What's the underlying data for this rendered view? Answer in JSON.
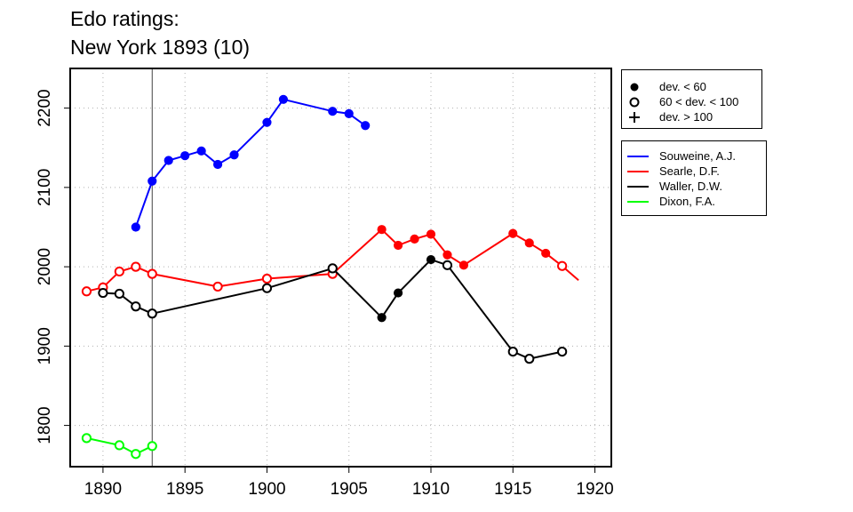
{
  "title_line1": "Edo ratings:",
  "title_line2": "New York 1893 (10)",
  "marker_legend": [
    {
      "label": "dev. < 60",
      "symbol": "filled-circle"
    },
    {
      "label": "60 < dev. < 100",
      "symbol": "open-circle"
    },
    {
      "label": "dev. > 100",
      "symbol": "plus"
    }
  ],
  "chart_data": {
    "type": "line",
    "title": "Edo ratings:\nNew York 1893 (10)",
    "xlabel": "",
    "ylabel": "",
    "xlim": [
      1888,
      1921
    ],
    "ylim": [
      1748,
      2250
    ],
    "xticks": [
      1890,
      1895,
      1900,
      1905,
      1910,
      1915,
      1920
    ],
    "yticks": [
      1800,
      1900,
      2000,
      2100,
      2200
    ],
    "grid": true,
    "vline_x": 1893,
    "legend_position": "right",
    "series": [
      {
        "name": "Souweine, A.J.",
        "color": "#0000ff",
        "points": [
          {
            "x": 1892,
            "y": 2050,
            "dev": "low"
          },
          {
            "x": 1893,
            "y": 2108,
            "dev": "low"
          },
          {
            "x": 1894,
            "y": 2134,
            "dev": "low"
          },
          {
            "x": 1895,
            "y": 2140,
            "dev": "low"
          },
          {
            "x": 1896,
            "y": 2146,
            "dev": "low"
          },
          {
            "x": 1897,
            "y": 2129,
            "dev": "low"
          },
          {
            "x": 1898,
            "y": 2141,
            "dev": "low"
          },
          {
            "x": 1900,
            "y": 2182,
            "dev": "low"
          },
          {
            "x": 1901,
            "y": 2211,
            "dev": "low"
          },
          {
            "x": 1904,
            "y": 2196,
            "dev": "low"
          },
          {
            "x": 1905,
            "y": 2193,
            "dev": "low"
          },
          {
            "x": 1906,
            "y": 2178,
            "dev": "low"
          }
        ]
      },
      {
        "name": "Searle, D.F.",
        "color": "#ff0000",
        "points": [
          {
            "x": 1889,
            "y": 1969,
            "dev": "mid"
          },
          {
            "x": 1890,
            "y": 1974,
            "dev": "mid"
          },
          {
            "x": 1891,
            "y": 1994,
            "dev": "mid"
          },
          {
            "x": 1892,
            "y": 2000,
            "dev": "mid"
          },
          {
            "x": 1893,
            "y": 1991,
            "dev": "mid"
          },
          {
            "x": 1897,
            "y": 1975,
            "dev": "mid"
          },
          {
            "x": 1900,
            "y": 1985,
            "dev": "mid"
          },
          {
            "x": 1904,
            "y": 1991,
            "dev": "mid"
          },
          {
            "x": 1907,
            "y": 2047,
            "dev": "low"
          },
          {
            "x": 1908,
            "y": 2027,
            "dev": "low"
          },
          {
            "x": 1909,
            "y": 2035,
            "dev": "low"
          },
          {
            "x": 1910,
            "y": 2041,
            "dev": "low"
          },
          {
            "x": 1911,
            "y": 2015,
            "dev": "low"
          },
          {
            "x": 1912,
            "y": 2002,
            "dev": "low"
          },
          {
            "x": 1915,
            "y": 2042,
            "dev": "low"
          },
          {
            "x": 1916,
            "y": 2030,
            "dev": "low"
          },
          {
            "x": 1917,
            "y": 2017,
            "dev": "low"
          },
          {
            "x": 1918,
            "y": 2001,
            "dev": "mid"
          },
          {
            "x": 1919,
            "y": 1983,
            "dev": "none"
          }
        ]
      },
      {
        "name": "Waller, D.W.",
        "color": "#000000",
        "points": [
          {
            "x": 1890,
            "y": 1967,
            "dev": "mid"
          },
          {
            "x": 1891,
            "y": 1966,
            "dev": "mid"
          },
          {
            "x": 1892,
            "y": 1950,
            "dev": "mid"
          },
          {
            "x": 1893,
            "y": 1941,
            "dev": "mid"
          },
          {
            "x": 1900,
            "y": 1973,
            "dev": "mid"
          },
          {
            "x": 1904,
            "y": 1998,
            "dev": "mid"
          },
          {
            "x": 1907,
            "y": 1936,
            "dev": "low"
          },
          {
            "x": 1908,
            "y": 1967,
            "dev": "low"
          },
          {
            "x": 1910,
            "y": 2009,
            "dev": "low"
          },
          {
            "x": 1911,
            "y": 2002,
            "dev": "mid"
          },
          {
            "x": 1915,
            "y": 1893,
            "dev": "mid"
          },
          {
            "x": 1916,
            "y": 1884,
            "dev": "mid"
          },
          {
            "x": 1918,
            "y": 1893,
            "dev": "mid"
          }
        ]
      },
      {
        "name": "Dixon, F.A.",
        "color": "#00ff00",
        "points": [
          {
            "x": 1889,
            "y": 1784,
            "dev": "mid"
          },
          {
            "x": 1891,
            "y": 1775,
            "dev": "mid"
          },
          {
            "x": 1892,
            "y": 1764,
            "dev": "mid"
          },
          {
            "x": 1893,
            "y": 1774,
            "dev": "mid"
          }
        ]
      }
    ]
  }
}
